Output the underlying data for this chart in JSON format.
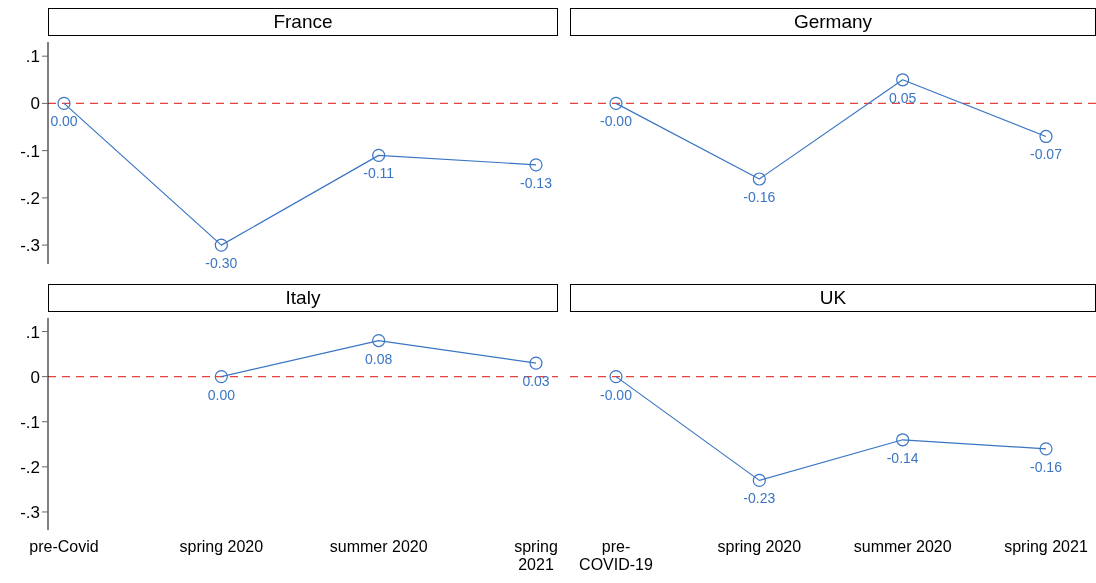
{
  "chart_data": [
    {
      "type": "line",
      "title": "France",
      "categories": [
        null,
        null,
        null,
        null
      ],
      "series": [
        {
          "color": "#3a75c4",
          "values": [
            0.0,
            -0.3,
            -0.11,
            -0.13
          ],
          "value_labels": [
            "0.00",
            "-0.30",
            "-0.11",
            "-0.13"
          ]
        }
      ],
      "ylim": [
        -0.34,
        0.13
      ],
      "yticks": [
        {
          "value": 0.1,
          "label": ".1"
        },
        {
          "value": 0,
          "label": "0"
        },
        {
          "value": -0.1,
          "label": "-.1"
        },
        {
          "value": -0.2,
          "label": "-.2"
        },
        {
          "value": -0.3,
          "label": "-.3"
        }
      ],
      "tick_labels": "y",
      "marker": "circle",
      "line_style": "solid",
      "grid": false,
      "legend": false,
      "ref_lines": [
        {
          "axis": "y",
          "value": 0,
          "color": "#e8423f",
          "line_style": "dashed"
        }
      ]
    },
    {
      "type": "line",
      "title": "Germany",
      "categories": [
        null,
        null,
        null,
        null
      ],
      "series": [
        {
          "color": "#3a75c4",
          "values": [
            0.0,
            -0.16,
            0.05,
            -0.07
          ],
          "value_labels": [
            "-0.00",
            "-0.16",
            "0.05",
            "-0.07"
          ]
        }
      ],
      "tick_labels": false,
      "marker": "circle",
      "line_style": "solid",
      "grid": false,
      "legend": false,
      "ref_lines": [
        {
          "axis": "y",
          "value": 0,
          "color": "#e8423f",
          "line_style": "dashed"
        }
      ]
    },
    {
      "type": "line",
      "title": "Italy",
      "categories": [
        "pre-Covid",
        "spring 2020",
        "summer 2020",
        "spring 2021"
      ],
      "series": [
        {
          "color": "#3a75c4",
          "values": [
            null,
            0.0,
            0.08,
            0.03
          ],
          "value_labels": [
            null,
            "0.00",
            "0.08",
            "0.03"
          ]
        }
      ],
      "ylim": [
        -0.34,
        0.13
      ],
      "yticks": [
        {
          "value": 0.1,
          "label": ".1"
        },
        {
          "value": 0,
          "label": "0"
        },
        {
          "value": -0.1,
          "label": "-.1"
        },
        {
          "value": -0.2,
          "label": "-.2"
        },
        {
          "value": -0.3,
          "label": "-.3"
        }
      ],
      "marker": "circle",
      "line_style": "solid",
      "grid": false,
      "legend": false,
      "ref_lines": [
        {
          "axis": "y",
          "value": 0,
          "color": "#e8423f",
          "line_style": "dashed"
        }
      ]
    },
    {
      "type": "line",
      "title": "UK",
      "categories": [
        "pre-COVID-19",
        "spring 2020",
        "summer 2020",
        "spring 2021"
      ],
      "series": [
        {
          "color": "#3a75c4",
          "values": [
            0.0,
            -0.23,
            -0.14,
            -0.16
          ],
          "value_labels": [
            "-0.00",
            "-0.23",
            "-0.14",
            "-0.16"
          ]
        }
      ],
      "tick_labels": "x",
      "marker": "circle",
      "line_style": "solid",
      "grid": false,
      "legend": false,
      "ref_lines": [
        {
          "axis": "y",
          "value": 0,
          "color": "#e8423f",
          "line_style": "dashed"
        }
      ]
    }
  ]
}
